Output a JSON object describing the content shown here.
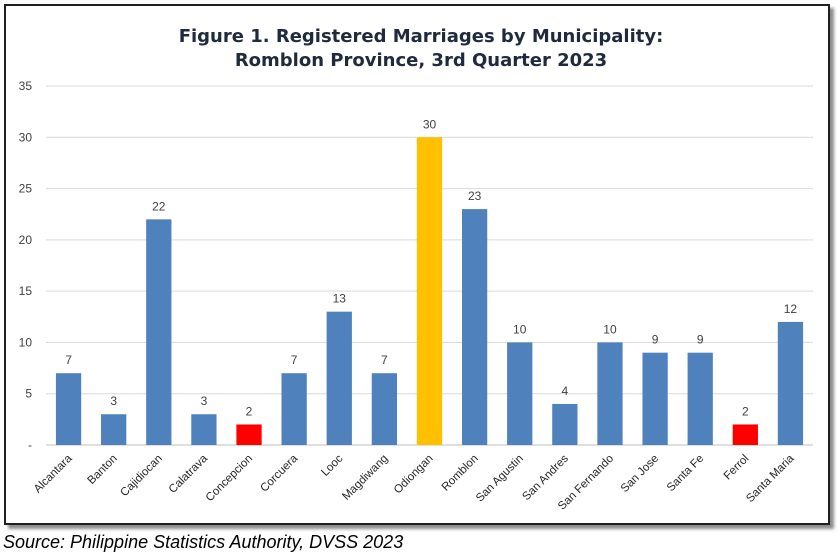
{
  "chart_data": {
    "type": "bar",
    "title": "Figure 1. Registered Marriages by Municipality:",
    "subtitle": "Romblon Province, 3rd Quarter 2023",
    "xlabel": "",
    "ylabel": "",
    "ylim": [
      0,
      35
    ],
    "yticks": [
      0,
      5,
      10,
      15,
      20,
      25,
      30,
      35
    ],
    "ytick_labels": [
      "-",
      "5",
      "10",
      "15",
      "20",
      "25",
      "30",
      "35"
    ],
    "grid": true,
    "legend": "none",
    "categories": [
      "Alcantara",
      "Banton",
      "Cajidiocan",
      "Calatrava",
      "Concepcion",
      "Corcuera",
      "Looc",
      "Magdiwang",
      "Odiongan",
      "Romblon",
      "San Agustin",
      "San Andres",
      "San Fernando",
      "San Jose",
      "Santa Fe",
      "Ferrol",
      "Santa Maria"
    ],
    "values": [
      7,
      3,
      22,
      3,
      2,
      7,
      13,
      7,
      30,
      23,
      10,
      4,
      10,
      9,
      9,
      2,
      12
    ],
    "colors": {
      "default": "#4f81bd",
      "highest": "#ffc000",
      "lowest": "#ff0000",
      "grid": "#d9d9d9",
      "axis": "#bfbfbf"
    }
  },
  "source": "Source: Philippine Statistics Authority, DVSS 2023"
}
